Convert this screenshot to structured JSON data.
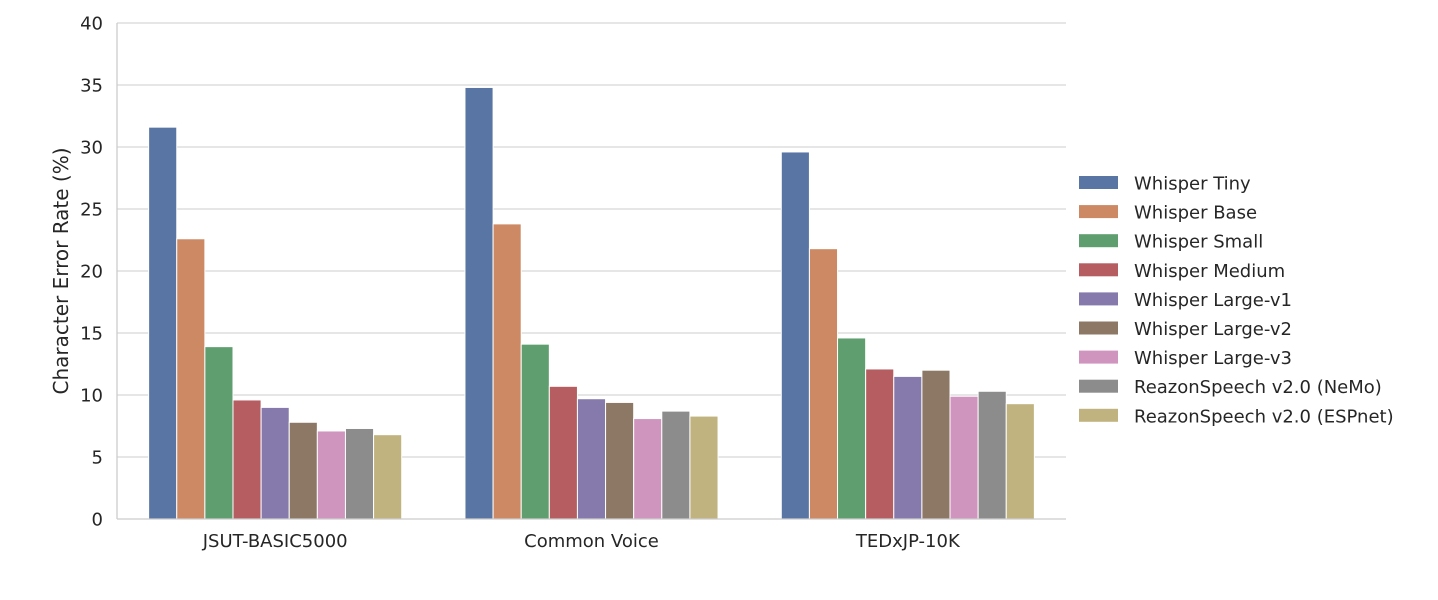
{
  "chart_data": {
    "type": "bar",
    "title": "",
    "xlabel": "",
    "ylabel": "Character Error Rate (%)",
    "ylim": [
      0,
      40
    ],
    "yticks": [
      0,
      5,
      10,
      15,
      20,
      25,
      30,
      35,
      40
    ],
    "grid": "horizontal",
    "legend_position": "right",
    "categories": [
      "JSUT-BASIC5000",
      "Common Voice",
      "TEDxJP-10K"
    ],
    "series": [
      {
        "name": "Whisper Tiny",
        "color": "#5875a4",
        "values": [
          31.6,
          34.8,
          29.6
        ]
      },
      {
        "name": "Whisper Base",
        "color": "#cc8963",
        "values": [
          22.6,
          23.8,
          21.8
        ]
      },
      {
        "name": "Whisper Small",
        "color": "#5f9e6e",
        "values": [
          13.9,
          14.1,
          14.6
        ]
      },
      {
        "name": "Whisper Medium",
        "color": "#b55d60",
        "values": [
          9.6,
          10.7,
          12.1
        ]
      },
      {
        "name": "Whisper Large-v1",
        "color": "#857aab",
        "values": [
          9.0,
          9.7,
          11.5
        ]
      },
      {
        "name": "Whisper Large-v2",
        "color": "#8d7866",
        "values": [
          7.8,
          9.4,
          12.0
        ]
      },
      {
        "name": "Whisper Large-v3",
        "color": "#d095bf",
        "values": [
          7.1,
          8.1,
          9.9
        ]
      },
      {
        "name": "ReazonSpeech v2.0 (NeMo)",
        "color": "#8c8c8c",
        "values": [
          7.3,
          8.7,
          10.3
        ]
      },
      {
        "name": "ReazonSpeech v2.0 (ESPnet)",
        "color": "#c1b37f",
        "values": [
          6.8,
          8.3,
          9.3
        ]
      }
    ]
  }
}
